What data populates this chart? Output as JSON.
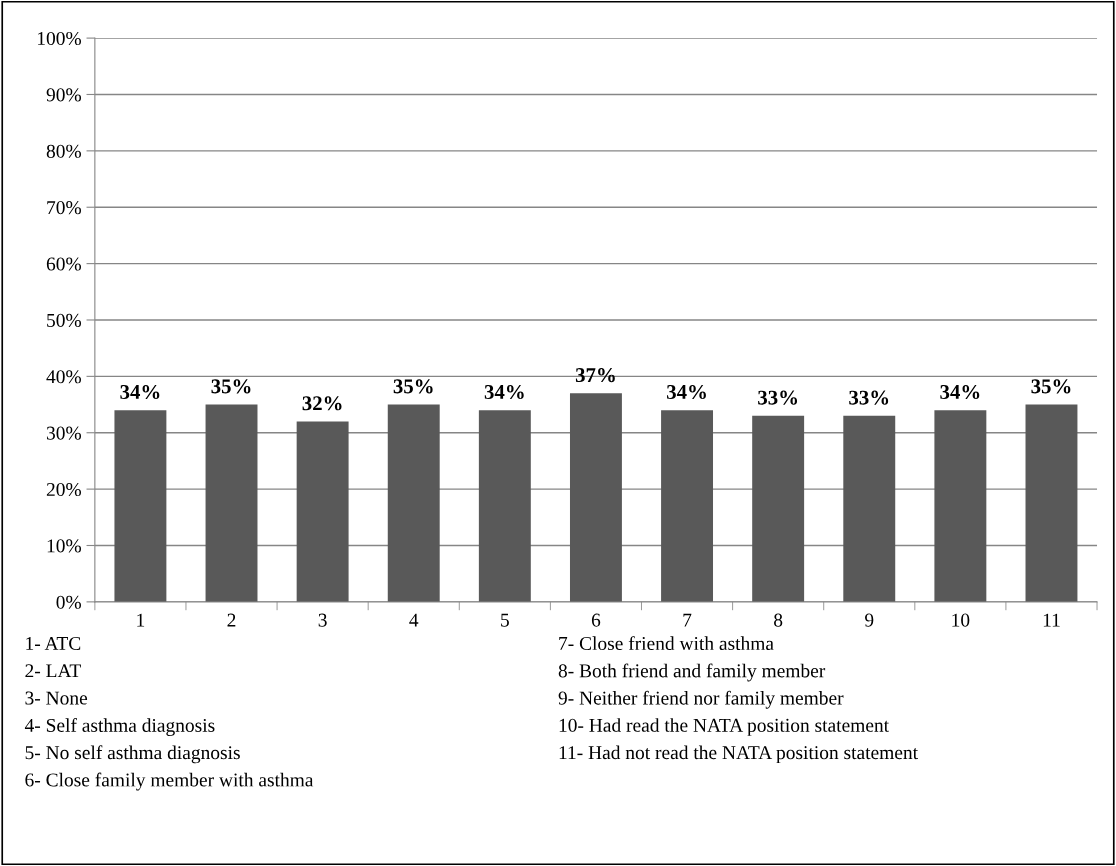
{
  "chart_data": {
    "type": "bar",
    "categories": [
      "1",
      "2",
      "3",
      "4",
      "5",
      "6",
      "7",
      "8",
      "9",
      "10",
      "11"
    ],
    "values": [
      34,
      35,
      32,
      35,
      34,
      37,
      34,
      33,
      33,
      34,
      35
    ],
    "color": "#595959",
    "value_labels": [
      "34%",
      "35%",
      "32%",
      "35%",
      "34%",
      "37%",
      "34%",
      "33%",
      "33%",
      "34%",
      "35%"
    ],
    "ylim": [
      0,
      100
    ],
    "yticks": [
      {
        "value": 0,
        "label": "0%"
      },
      {
        "value": 10,
        "label": "10%"
      },
      {
        "value": 20,
        "label": "20%"
      },
      {
        "value": 30,
        "label": "30%"
      },
      {
        "value": 40,
        "label": "40%"
      },
      {
        "value": 50,
        "label": "50%"
      },
      {
        "value": 60,
        "label": "60%"
      },
      {
        "value": 70,
        "label": "70%"
      },
      {
        "value": 80,
        "label": "80%"
      },
      {
        "value": 90,
        "label": "90%"
      },
      {
        "value": 100,
        "label": "100%"
      }
    ],
    "grid": "y",
    "annotations": [
      "1- ATC",
      "2- LAT",
      "3- None",
      "4- Self asthma diagnosis",
      "5- No self asthma diagnosis",
      "6- Close family member with asthma",
      "7- Close friend with asthma",
      "8- Both friend and family member",
      "9- Neither friend nor family member",
      "10- Had read the NATA position statement",
      "11- Had not read the NATA position statement"
    ]
  }
}
